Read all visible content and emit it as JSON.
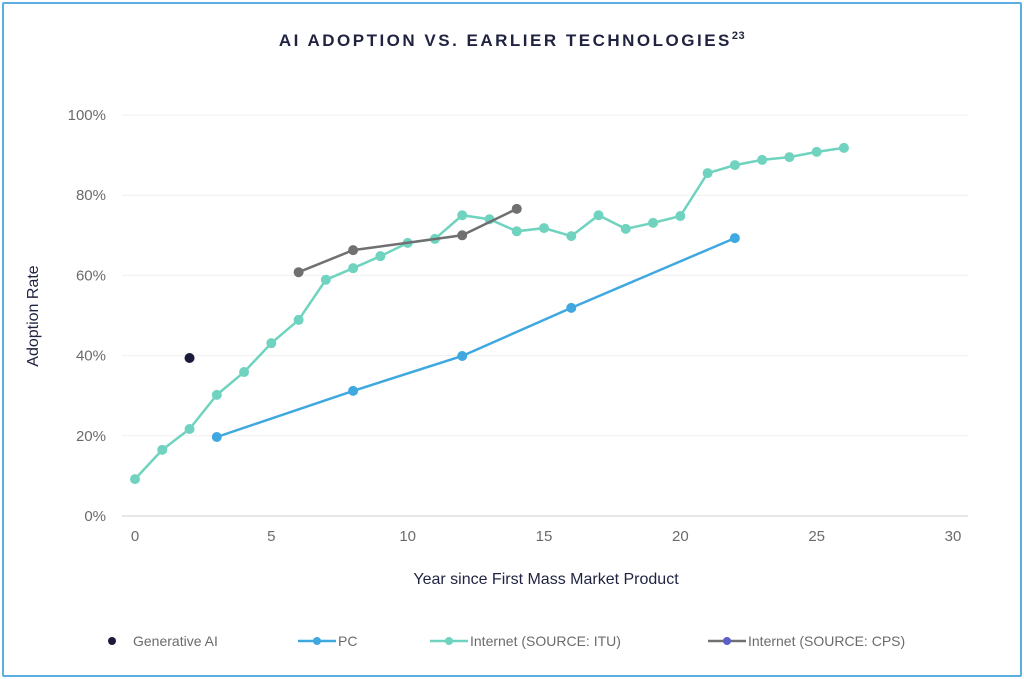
{
  "chart_data": {
    "type": "line",
    "title": "AI ADOPTION VS. EARLIER TECHNOLOGIES",
    "title_superscript": "23",
    "xlabel": "Year since First Mass Market Product",
    "ylabel": "Adoption Rate",
    "xlim": [
      0,
      30
    ],
    "ylim": [
      0,
      100
    ],
    "x_ticks": [
      "0",
      "5",
      "10",
      "15",
      "20",
      "25",
      "30"
    ],
    "y_ticks": [
      "0%",
      "20%",
      "40%",
      "60%",
      "80%",
      "100%"
    ],
    "grid": "horizontal",
    "legend_position": "bottom",
    "series": [
      {
        "name": "Generative AI",
        "color": "#1a1b3a",
        "x": [
          2
        ],
        "y": [
          39.4
        ]
      },
      {
        "name": "PC",
        "color": "#3fa8e0",
        "x": [
          3,
          8,
          12,
          16,
          22
        ],
        "y": [
          19.7,
          31.2,
          39.9,
          51.9,
          69.3
        ]
      },
      {
        "name": "Internet (SOURCE: ITU)",
        "color": "#6fd3bf",
        "x": [
          0,
          1,
          2,
          3,
          4,
          5,
          6,
          7,
          8,
          9,
          10,
          11,
          12,
          13,
          14,
          15,
          16,
          17,
          18,
          19,
          20,
          21,
          22,
          23,
          24,
          25,
          26
        ],
        "y": [
          9.2,
          16.5,
          21.7,
          30.2,
          35.9,
          43.1,
          48.9,
          58.9,
          61.8,
          64.8,
          68.1,
          69.1,
          75,
          74,
          71,
          71.8,
          69.8,
          75,
          71.6,
          73.1,
          74.8,
          85.5,
          87.5,
          88.8,
          89.5,
          90.8,
          91.8
        ]
      },
      {
        "name": "Internet (SOURCE: CPS)",
        "color": "#707072",
        "marker_color": "#5b5fc7",
        "x": [
          6,
          8,
          12,
          14
        ],
        "y": [
          60.8,
          66.3,
          70,
          76.6
        ]
      }
    ]
  }
}
